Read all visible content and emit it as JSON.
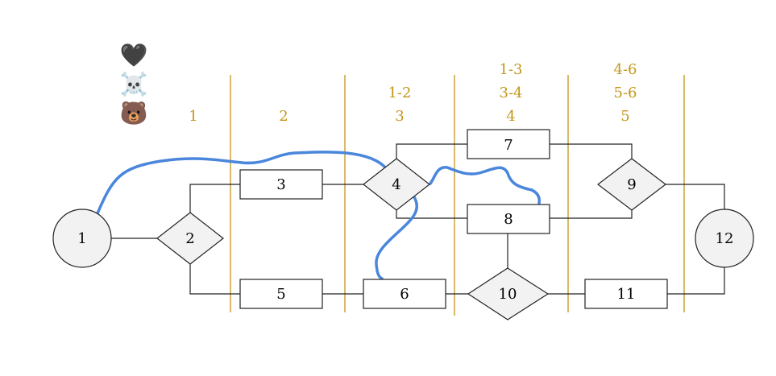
{
  "legend": {
    "items": [
      {
        "glyph": "🖤",
        "icon": "black-heart-icon"
      },
      {
        "glyph": "☠️",
        "icon": "skull-crossbones-icon"
      },
      {
        "glyph": "🐻",
        "icon": "bear-face-icon"
      }
    ]
  },
  "columns": [
    {
      "labels": [
        "1"
      ]
    },
    {
      "labels": [
        "2"
      ]
    },
    {
      "labels": [
        "1-2",
        "3"
      ]
    },
    {
      "labels": [
        "1-3",
        "3-4",
        "4"
      ]
    },
    {
      "labels": [
        "4-6",
        "5-6",
        "5"
      ]
    }
  ],
  "nodes": [
    {
      "id": "1",
      "label": "1",
      "shape": "circle"
    },
    {
      "id": "2",
      "label": "2",
      "shape": "diamond"
    },
    {
      "id": "3",
      "label": "3",
      "shape": "rect"
    },
    {
      "id": "4",
      "label": "4",
      "shape": "diamond"
    },
    {
      "id": "5",
      "label": "5",
      "shape": "rect"
    },
    {
      "id": "6",
      "label": "6",
      "shape": "rect"
    },
    {
      "id": "7",
      "label": "7",
      "shape": "rect"
    },
    {
      "id": "8",
      "label": "8",
      "shape": "rect"
    },
    {
      "id": "9",
      "label": "9",
      "shape": "diamond"
    },
    {
      "id": "10",
      "label": "10",
      "shape": "diamond"
    },
    {
      "id": "11",
      "label": "11",
      "shape": "rect"
    },
    {
      "id": "12",
      "label": "12",
      "shape": "circle"
    }
  ],
  "colors": {
    "column_accent": "#c4961a",
    "highlight_path": "#4a86dc",
    "node_fill": "#f2f2f2",
    "stroke": "#222222"
  }
}
